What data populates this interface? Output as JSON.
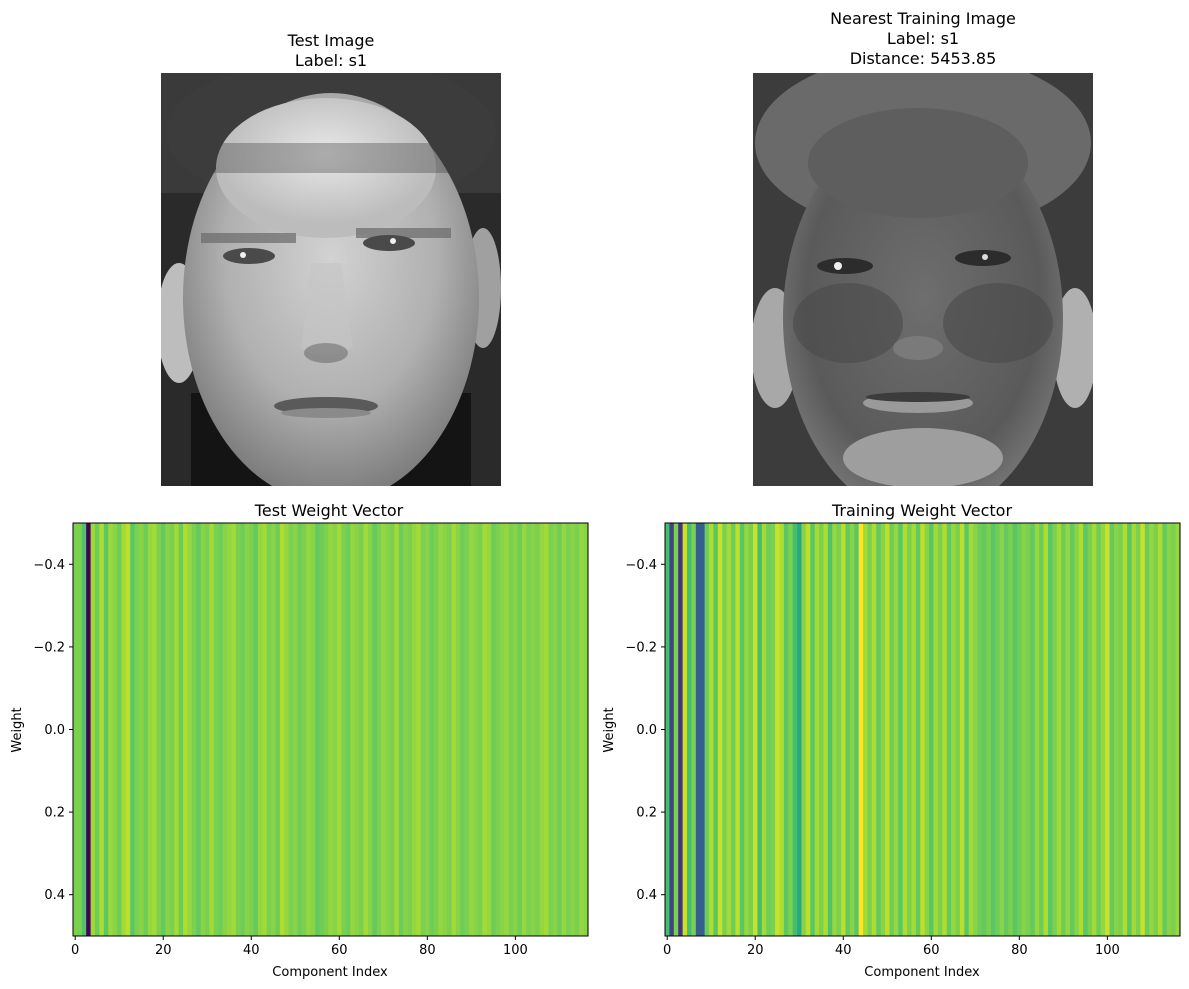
{
  "figure": {
    "test_image": {
      "title": "Test Image",
      "label": "Label: s1"
    },
    "nearest_image": {
      "title": "Nearest Training Image",
      "label": "Label: s1",
      "distance": "Distance: 5453.85"
    }
  },
  "chart_data": [
    {
      "type": "heatmap",
      "title": "Test Weight Vector",
      "xlabel": "Component Index",
      "ylabel": "Weight",
      "xlim": [
        -0.5,
        116.5
      ],
      "ylim": [
        0.5,
        -0.5
      ],
      "xticks": [
        0,
        20,
        40,
        60,
        80,
        100
      ],
      "yticks": [
        -0.4,
        -0.2,
        0.0,
        0.2,
        0.4
      ],
      "colormap": "viridis",
      "values": [
        0.8,
        0.8,
        0.72,
        0.0,
        0.85,
        0.78,
        0.88,
        0.74,
        0.85,
        0.82,
        0.78,
        0.86,
        0.9,
        0.74,
        0.8,
        0.82,
        0.78,
        0.84,
        0.86,
        0.8,
        0.76,
        0.82,
        0.8,
        0.86,
        0.78,
        0.88,
        0.84,
        0.8,
        0.76,
        0.82,
        0.8,
        0.86,
        0.8,
        0.78,
        0.82,
        0.84,
        0.86,
        0.8,
        0.78,
        0.82,
        0.8,
        0.76,
        0.84,
        0.86,
        0.8,
        0.82,
        0.78,
        0.88,
        0.84,
        0.8,
        0.82,
        0.78,
        0.8,
        0.84,
        0.82,
        0.76,
        0.78,
        0.8,
        0.84,
        0.82,
        0.86,
        0.8,
        0.78,
        0.84,
        0.82,
        0.8,
        0.86,
        0.82,
        0.76,
        0.8,
        0.84,
        0.82,
        0.8,
        0.86,
        0.78,
        0.82,
        0.8,
        0.84,
        0.86,
        0.8,
        0.82,
        0.78,
        0.8,
        0.84,
        0.82,
        0.8,
        0.86,
        0.82,
        0.78,
        0.8,
        0.84,
        0.82,
        0.8,
        0.86,
        0.84,
        0.78,
        0.8,
        0.82,
        0.84,
        0.8,
        0.82,
        0.78,
        0.84,
        0.8,
        0.82,
        0.8,
        0.84,
        0.86,
        0.8,
        0.82,
        0.78,
        0.84,
        0.8,
        0.82,
        0.8,
        0.84,
        0.82
      ]
    },
    {
      "type": "heatmap",
      "title": "Training Weight Vector",
      "xlabel": "Component Index",
      "ylabel": "Weight",
      "xlim": [
        -0.5,
        116.5
      ],
      "ylim": [
        0.5,
        -0.5
      ],
      "xticks": [
        0,
        20,
        40,
        60,
        80,
        100
      ],
      "yticks": [
        -0.4,
        -0.2,
        0.0,
        0.2,
        0.4
      ],
      "colormap": "viridis",
      "values": [
        0.7,
        0.2,
        0.8,
        0.15,
        0.92,
        0.7,
        0.8,
        0.3,
        0.3,
        0.78,
        0.88,
        0.74,
        0.92,
        0.8,
        0.86,
        0.78,
        0.9,
        0.74,
        0.84,
        0.8,
        0.92,
        0.7,
        0.86,
        0.78,
        0.8,
        0.92,
        0.88,
        0.74,
        0.8,
        0.7,
        0.6,
        0.82,
        0.9,
        0.74,
        0.86,
        0.8,
        0.88,
        0.72,
        0.84,
        0.8,
        0.9,
        0.76,
        0.82,
        0.74,
        1.0,
        0.86,
        0.8,
        0.88,
        0.76,
        0.82,
        0.9,
        0.78,
        0.84,
        0.74,
        0.88,
        0.8,
        0.86,
        0.76,
        0.9,
        0.82,
        0.74,
        0.86,
        0.8,
        0.88,
        0.76,
        0.84,
        0.8,
        0.9,
        0.74,
        0.86,
        0.82,
        0.78,
        0.76,
        0.8,
        0.74,
        0.78,
        0.82,
        0.76,
        0.8,
        0.74,
        0.78,
        0.82,
        0.8,
        0.76,
        0.84,
        0.78,
        0.88,
        0.74,
        0.8,
        0.86,
        0.78,
        0.84,
        0.76,
        0.82,
        0.88,
        0.74,
        0.8,
        0.86,
        0.78,
        0.84,
        0.92,
        0.76,
        0.82,
        0.8,
        0.88,
        0.74,
        0.86,
        0.8,
        0.92,
        0.78,
        0.84,
        0.8,
        0.88,
        0.76,
        0.82,
        0.8,
        0.84
      ]
    }
  ]
}
